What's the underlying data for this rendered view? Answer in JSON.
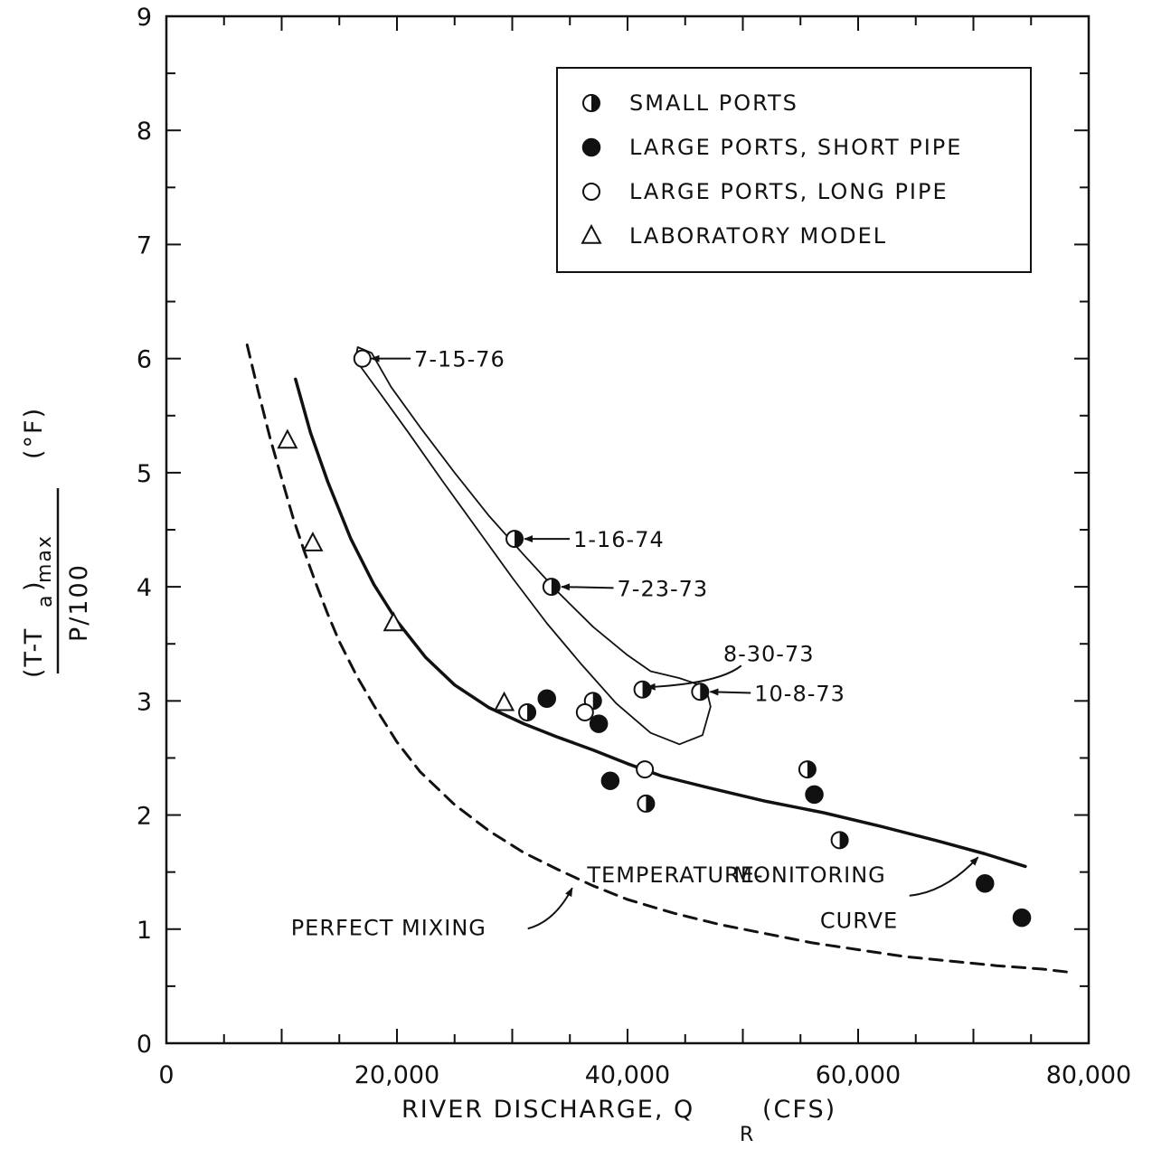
{
  "chart_data": {
    "type": "scatter",
    "title": "",
    "xlabel": "RIVER DISCHARGE, Q",
    "xlabel_subscript": "R",
    "xlabel_unit": "(CFS)",
    "ylabel": {
      "numerator_main": "(T-T",
      "numerator_sub": "a",
      "numerator_close": ")",
      "numerator_max": "max",
      "denominator": "P/100",
      "unit": "(°F)"
    },
    "xlim": [
      0,
      80000
    ],
    "ylim": [
      0,
      9
    ],
    "x_ticks": [
      {
        "value": 0,
        "label": "0"
      },
      {
        "value": 20000,
        "label": "20,000"
      },
      {
        "value": 40000,
        "label": "40,000"
      },
      {
        "value": 60000,
        "label": "60,000"
      },
      {
        "value": 80000,
        "label": "80,000"
      }
    ],
    "y_ticks": [
      {
        "value": 0,
        "label": "0"
      },
      {
        "value": 1,
        "label": "1"
      },
      {
        "value": 2,
        "label": "2"
      },
      {
        "value": 3,
        "label": "3"
      },
      {
        "value": 4,
        "label": "4"
      },
      {
        "value": 5,
        "label": "5"
      },
      {
        "value": 6,
        "label": "6"
      },
      {
        "value": 7,
        "label": "7"
      },
      {
        "value": 8,
        "label": "8"
      },
      {
        "value": 9,
        "label": "9"
      }
    ],
    "legend": {
      "placement": "top-right",
      "entries": [
        {
          "marker": "half",
          "label": "SMALL PORTS"
        },
        {
          "marker": "filled",
          "label": "LARGE PORTS, SHORT PIPE"
        },
        {
          "marker": "open",
          "label": "LARGE PORTS, LONG PIPE"
        },
        {
          "marker": "triangle",
          "label": "LABORATORY MODEL"
        }
      ]
    },
    "series": [
      {
        "marker": "half",
        "points": [
          {
            "x": 30200,
            "y": 4.42
          },
          {
            "x": 33400,
            "y": 4.0
          },
          {
            "x": 41300,
            "y": 3.1
          },
          {
            "x": 46300,
            "y": 3.08
          },
          {
            "x": 31300,
            "y": 2.9
          },
          {
            "x": 37000,
            "y": 3.0
          },
          {
            "x": 41600,
            "y": 2.1
          },
          {
            "x": 55600,
            "y": 2.4
          },
          {
            "x": 58400,
            "y": 1.78
          }
        ]
      },
      {
        "marker": "filled",
        "points": [
          {
            "x": 33000,
            "y": 3.02
          },
          {
            "x": 37500,
            "y": 2.8
          },
          {
            "x": 38500,
            "y": 2.3
          },
          {
            "x": 56200,
            "y": 2.18
          },
          {
            "x": 71000,
            "y": 1.4
          },
          {
            "x": 74200,
            "y": 1.1
          }
        ]
      },
      {
        "marker": "open",
        "points": [
          {
            "x": 17000,
            "y": 6.0
          },
          {
            "x": 36300,
            "y": 2.9
          },
          {
            "x": 41500,
            "y": 2.4
          }
        ]
      },
      {
        "marker": "triangle",
        "points": [
          {
            "x": 10500,
            "y": 5.28
          },
          {
            "x": 12700,
            "y": 4.38
          },
          {
            "x": 19700,
            "y": 3.68
          },
          {
            "x": 29300,
            "y": 2.98
          }
        ]
      }
    ],
    "curves": [
      {
        "label": "PERFECT MIXING",
        "style": "dashed",
        "points": [
          [
            7000,
            6.12
          ],
          [
            8000,
            5.7
          ],
          [
            9000,
            5.3
          ],
          [
            10000,
            4.95
          ],
          [
            11000,
            4.6
          ],
          [
            12000,
            4.3
          ],
          [
            13000,
            4.02
          ],
          [
            14000,
            3.76
          ],
          [
            15000,
            3.52
          ],
          [
            16500,
            3.22
          ],
          [
            18000,
            2.96
          ],
          [
            20000,
            2.64
          ],
          [
            22000,
            2.38
          ],
          [
            25000,
            2.09
          ],
          [
            28000,
            1.86
          ],
          [
            31000,
            1.67
          ],
          [
            34000,
            1.52
          ],
          [
            37000,
            1.38
          ],
          [
            40000,
            1.26
          ],
          [
            44000,
            1.14
          ],
          [
            48000,
            1.04
          ],
          [
            52000,
            0.96
          ],
          [
            56000,
            0.88
          ],
          [
            60000,
            0.82
          ],
          [
            64000,
            0.76
          ],
          [
            68000,
            0.72
          ],
          [
            72000,
            0.68
          ],
          [
            76000,
            0.65
          ],
          [
            78500,
            0.62
          ]
        ]
      },
      {
        "label": "TEMPERATURE-MONITORING CURVE",
        "style": "solid",
        "points": [
          [
            11200,
            5.82
          ],
          [
            12500,
            5.35
          ],
          [
            14000,
            4.92
          ],
          [
            16000,
            4.42
          ],
          [
            18000,
            4.02
          ],
          [
            20000,
            3.7
          ],
          [
            22500,
            3.38
          ],
          [
            25000,
            3.14
          ],
          [
            28000,
            2.94
          ],
          [
            31000,
            2.8
          ],
          [
            34000,
            2.68
          ],
          [
            37000,
            2.57
          ],
          [
            40000,
            2.45
          ],
          [
            43000,
            2.34
          ],
          [
            47000,
            2.24
          ],
          [
            52000,
            2.12
          ],
          [
            57000,
            2.02
          ],
          [
            62000,
            1.9
          ],
          [
            67000,
            1.77
          ],
          [
            71000,
            1.66
          ],
          [
            74500,
            1.55
          ]
        ]
      }
    ],
    "envelope": {
      "style": "solid-thin",
      "points": [
        [
          16600,
          6.1
        ],
        [
          17800,
          6.05
        ],
        [
          19500,
          5.75
        ],
        [
          22000,
          5.4
        ],
        [
          25000,
          5.0
        ],
        [
          28000,
          4.62
        ],
        [
          31000,
          4.28
        ],
        [
          34000,
          3.95
        ],
        [
          37000,
          3.65
        ],
        [
          40000,
          3.4
        ],
        [
          42000,
          3.26
        ],
        [
          44500,
          3.2
        ],
        [
          46800,
          3.12
        ],
        [
          47200,
          2.95
        ],
        [
          46500,
          2.7
        ],
        [
          44500,
          2.62
        ],
        [
          42000,
          2.72
        ],
        [
          39000,
          2.98
        ],
        [
          36000,
          3.32
        ],
        [
          33000,
          3.68
        ],
        [
          30000,
          4.08
        ],
        [
          27000,
          4.5
        ],
        [
          24000,
          4.92
        ],
        [
          21000,
          5.35
        ],
        [
          18500,
          5.7
        ],
        [
          16700,
          5.95
        ],
        [
          16500,
          6.05
        ],
        [
          16600,
          6.1
        ]
      ]
    },
    "annotations": [
      {
        "text": "7-15-76",
        "x": 21500,
        "y": 6.0,
        "target_x": 17300,
        "target_y": 6.0
      },
      {
        "text": "1-16-74",
        "x": 35300,
        "y": 4.42,
        "target_x": 30600,
        "target_y": 4.42
      },
      {
        "text": "7-23-73",
        "x": 39100,
        "y": 3.99,
        "target_x": 33800,
        "target_y": 4.0
      },
      {
        "text": "8-30-73",
        "x": 48300,
        "y": 3.42,
        "target_x": 41700,
        "target_y": 3.12
      },
      {
        "text": "10-8-73",
        "x": 51000,
        "y": 3.07,
        "target_x": 46700,
        "target_y": 3.08
      },
      {
        "text": "PERFECT MIXING",
        "x": 10800,
        "y": 1.02,
        "target_x": 35200,
        "target_y": 1.36
      },
      {
        "text": "TEMPERATURE-",
        "x": 36500,
        "y": 1.48,
        "target_x": 0,
        "target_y": 0
      },
      {
        "text": "MONITORING",
        "x": 49200,
        "y": 1.48,
        "target_x": 0,
        "target_y": 0
      },
      {
        "text": "CURVE",
        "x": 56700,
        "y": 1.08,
        "target_x": 0,
        "target_y": 0
      }
    ],
    "grid": false
  }
}
